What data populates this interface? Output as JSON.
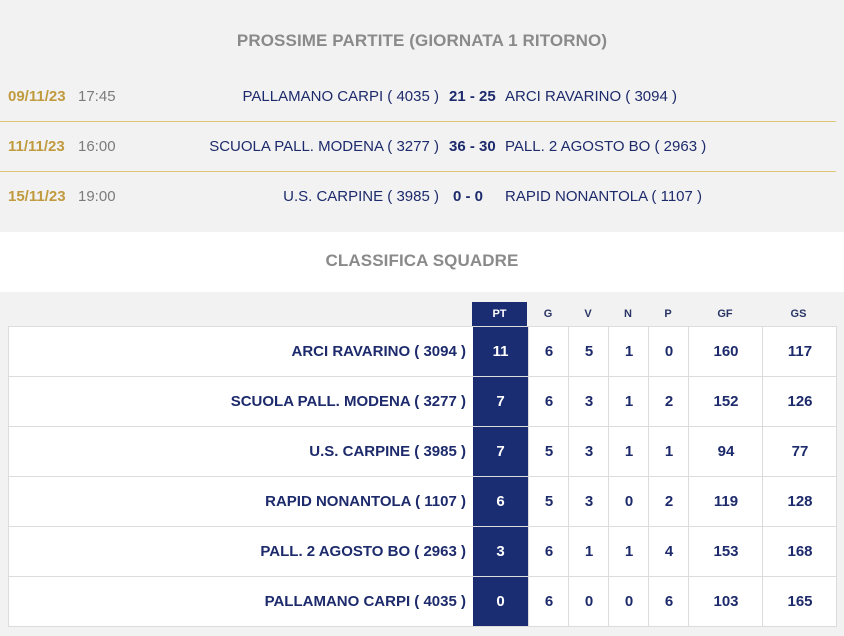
{
  "matches": {
    "title": "PROSSIME PARTITE (GIORNATA 1 RITORNO)",
    "rows": [
      {
        "date": "09/11/23",
        "time": "17:45",
        "home": "PALLAMANO CARPI ( 4035 )",
        "score": "21 - 25",
        "away": "ARCI RAVARINO ( 3094 )"
      },
      {
        "date": "11/11/23",
        "time": "16:00",
        "home": "SCUOLA PALL. MODENA ( 3277 )",
        "score": "36 - 30",
        "away": "PALL. 2 AGOSTO BO ( 2963 )"
      },
      {
        "date": "15/11/23",
        "time": "19:00",
        "home": "U.S. CARPINE ( 3985 )",
        "score": "0 - 0",
        "away": "RAPID NONANTOLA ( 1107 )"
      }
    ]
  },
  "standings": {
    "title": "CLASSIFICA SQUADRE",
    "headers": {
      "pt": "PT",
      "g": "G",
      "v": "V",
      "n": "N",
      "p": "P",
      "gf": "GF",
      "gs": "GS"
    },
    "rows": [
      {
        "team": "ARCI RAVARINO ( 3094 )",
        "pt": "11",
        "g": "6",
        "v": "5",
        "n": "1",
        "p": "0",
        "gf": "160",
        "gs": "117"
      },
      {
        "team": "SCUOLA PALL. MODENA ( 3277 )",
        "pt": "7",
        "g": "6",
        "v": "3",
        "n": "1",
        "p": "2",
        "gf": "152",
        "gs": "126"
      },
      {
        "team": "U.S. CARPINE ( 3985 )",
        "pt": "7",
        "g": "5",
        "v": "3",
        "n": "1",
        "p": "1",
        "gf": "94",
        "gs": "77"
      },
      {
        "team": "RAPID NONANTOLA ( 1107 )",
        "pt": "6",
        "g": "5",
        "v": "3",
        "n": "0",
        "p": "2",
        "gf": "119",
        "gs": "128"
      },
      {
        "team": "PALL. 2 AGOSTO BO ( 2963 )",
        "pt": "3",
        "g": "6",
        "v": "1",
        "n": "1",
        "p": "4",
        "gf": "153",
        "gs": "168"
      },
      {
        "team": "PALLAMANO CARPI ( 4035 )",
        "pt": "0",
        "g": "6",
        "v": "0",
        "n": "0",
        "p": "6",
        "gf": "103",
        "gs": "165"
      }
    ]
  },
  "colors": {
    "accent_navy": "#1b2d72",
    "date_gold": "#c09a3e",
    "separator_gold": "#e0c777",
    "panel_gray": "#f2f2f2"
  }
}
